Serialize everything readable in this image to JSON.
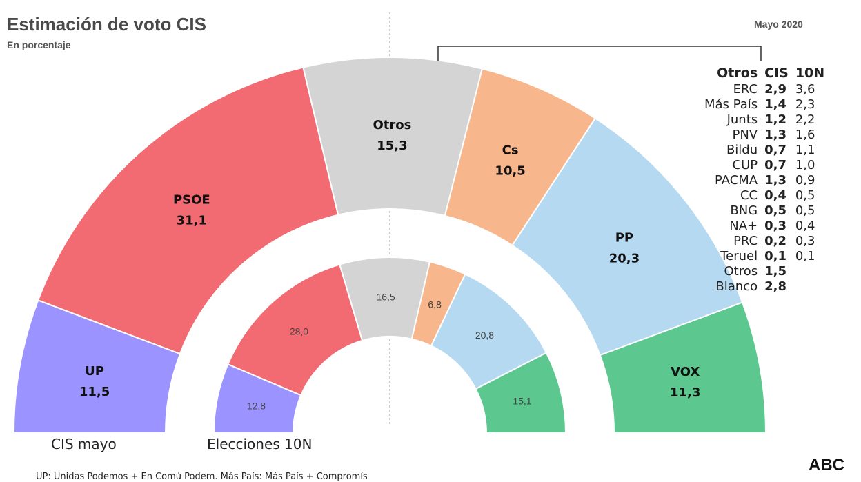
{
  "header": {
    "title": "Estimación de voto CIS",
    "subtitle": "En porcentaje",
    "date": "Mayo 2020"
  },
  "chart_data": {
    "type": "pie",
    "variant": "nested-semicircle",
    "series": [
      {
        "name": "CIS mayo",
        "slices": [
          {
            "label": "UP",
            "value": 11.5,
            "display": "11,5",
            "color": "#9b93ff"
          },
          {
            "label": "PSOE",
            "value": 31.1,
            "display": "31,1",
            "color": "#f26a72"
          },
          {
            "label": "Otros",
            "value": 15.3,
            "display": "15,3",
            "color": "#d4d4d4"
          },
          {
            "label": "Cs",
            "value": 10.5,
            "display": "10,5",
            "color": "#f7b68b"
          },
          {
            "label": "PP",
            "value": 20.3,
            "display": "20,3",
            "color": "#b5d9f1"
          },
          {
            "label": "VOX",
            "value": 11.3,
            "display": "11,3",
            "color": "#5cc78e"
          }
        ]
      },
      {
        "name": "Elecciones 10N",
        "slices": [
          {
            "label": "UP",
            "value": 12.8,
            "display": "12,8",
            "color": "#9b93ff"
          },
          {
            "label": "PSOE",
            "value": 28.0,
            "display": "28,0",
            "color": "#f26a72"
          },
          {
            "label": "Otros",
            "value": 16.5,
            "display": "16,5",
            "color": "#d4d4d4"
          },
          {
            "label": "Cs",
            "value": 6.8,
            "display": "6,8",
            "color": "#f7b68b"
          },
          {
            "label": "PP",
            "value": 20.8,
            "display": "20,8",
            "color": "#b5d9f1"
          },
          {
            "label": "VOX",
            "value": 15.1,
            "display": "15,1",
            "color": "#5cc78e"
          }
        ]
      }
    ],
    "otros_breakdown": {
      "headers": [
        "Otros",
        "CIS",
        "10N"
      ],
      "rows": [
        {
          "name": "ERC",
          "cis": "2,9",
          "n10": "3,6"
        },
        {
          "name": "Más País",
          "cis": "1,4",
          "n10": "2,3"
        },
        {
          "name": "Junts",
          "cis": "1,2",
          "n10": "2,2"
        },
        {
          "name": "PNV",
          "cis": "1,3",
          "n10": "1,6"
        },
        {
          "name": "Bildu",
          "cis": "0,7",
          "n10": "1,1"
        },
        {
          "name": "CUP",
          "cis": "0,7",
          "n10": "1,0"
        },
        {
          "name": "PACMA",
          "cis": "1,3",
          "n10": "0,9"
        },
        {
          "name": "CC",
          "cis": "0,4",
          "n10": "0,5"
        },
        {
          "name": "BNG",
          "cis": "0,5",
          "n10": "0,5"
        },
        {
          "name": "NA+",
          "cis": "0,3",
          "n10": "0,4"
        },
        {
          "name": "PRC",
          "cis": "0,2",
          "n10": "0,3"
        },
        {
          "name": "Teruel",
          "cis": "0,1",
          "n10": "0,1"
        },
        {
          "name": "Otros",
          "cis": "1,5",
          "n10": ""
        },
        {
          "name": "Blanco",
          "cis": "2,8",
          "n10": ""
        }
      ]
    }
  },
  "ring_labels": {
    "outer": "CIS mayo",
    "inner": "Elecciones 10N"
  },
  "brand": "ABC",
  "footnote": "UP: Unidas Podemos + En Comú Podem. Más País: Más País + Compromís"
}
